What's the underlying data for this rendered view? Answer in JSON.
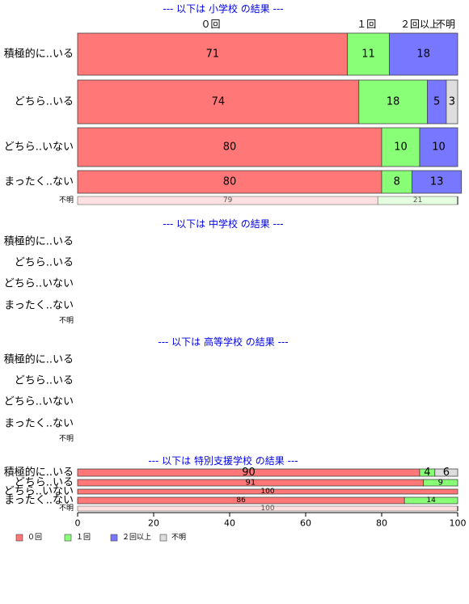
{
  "chart_data": {
    "type": "bar",
    "orientation": "horizontal",
    "stacked": true,
    "xlim": [
      0,
      100
    ],
    "x_ticks": [
      "0",
      "20",
      "40",
      "60",
      "80",
      "100"
    ],
    "top_labels": [
      "０回",
      "１回",
      "２回以上",
      "不明"
    ],
    "series": [
      {
        "name": "０回",
        "color": "#ff7777"
      },
      {
        "name": "１回",
        "color": "#88ff77"
      },
      {
        "name": "２回以上",
        "color": "#7777ff"
      },
      {
        "name": "不明",
        "color": "#dddddd"
      }
    ],
    "panels": [
      {
        "title": "--- 以下は 小学校 の結果 ---",
        "rows": [
          {
            "label": "積極的に..いる",
            "values": [
              71,
              11,
              18,
              0
            ],
            "labels": [
              "71",
              "11",
              "18",
              ""
            ]
          },
          {
            "label": "どちら..いる",
            "values": [
              74,
              18,
              5,
              3
            ],
            "labels": [
              "74",
              "18",
              "5",
              "3"
            ]
          },
          {
            "label": "どちら..いない",
            "values": [
              80,
              10,
              10,
              0
            ],
            "labels": [
              "80",
              "10",
              "10",
              ""
            ]
          },
          {
            "label": "まったく..ない",
            "values": [
              80,
              8,
              13,
              0
            ],
            "labels": [
              "80",
              "8",
              "13",
              ""
            ]
          },
          {
            "label": "不明",
            "values": [
              79,
              21,
              0,
              0
            ],
            "labels": [
              "79",
              "21",
              "",
              ""
            ],
            "faded": true
          }
        ]
      },
      {
        "title": "--- 以下は 中学校 の結果 ---",
        "rows": [
          {
            "label": "積極的に..いる",
            "values": []
          },
          {
            "label": "どちら..いる",
            "values": []
          },
          {
            "label": "どちら..いない",
            "values": []
          },
          {
            "label": "まったく..ない",
            "values": []
          },
          {
            "label": "不明",
            "values": []
          }
        ]
      },
      {
        "title": "--- 以下は 高等学校 の結果 ---",
        "rows": [
          {
            "label": "積極的に..いる",
            "values": []
          },
          {
            "label": "どちら..いる",
            "values": []
          },
          {
            "label": "どちら..いない",
            "values": []
          },
          {
            "label": "まったく..ない",
            "values": []
          },
          {
            "label": "不明",
            "values": []
          }
        ]
      },
      {
        "title": "--- 以下は 特別支援学校 の結果 ---",
        "rows": [
          {
            "label": "積極的に..いる",
            "values": [
              90,
              4,
              0,
              6
            ],
            "labels": [
              "90",
              "4",
              "",
              "6"
            ]
          },
          {
            "label": "どちら..いる",
            "values": [
              91,
              9,
              0,
              0
            ],
            "labels": [
              "91",
              "9",
              "",
              ""
            ]
          },
          {
            "label": "どちら..いない",
            "values": [
              100,
              0,
              0,
              0
            ],
            "labels": [
              "100",
              "",
              "",
              ""
            ]
          },
          {
            "label": "まったく..ない",
            "values": [
              86,
              14,
              0,
              0
            ],
            "labels": [
              "86",
              "14",
              "",
              ""
            ]
          },
          {
            "label": "不明",
            "values": [
              100,
              0,
              0,
              0
            ],
            "labels": [
              "100",
              "",
              "",
              ""
            ],
            "faded": true
          }
        ]
      }
    ],
    "legend": [
      "０回",
      "１回",
      "２回以上",
      "不明"
    ],
    "legend_position": "bottom-left"
  }
}
